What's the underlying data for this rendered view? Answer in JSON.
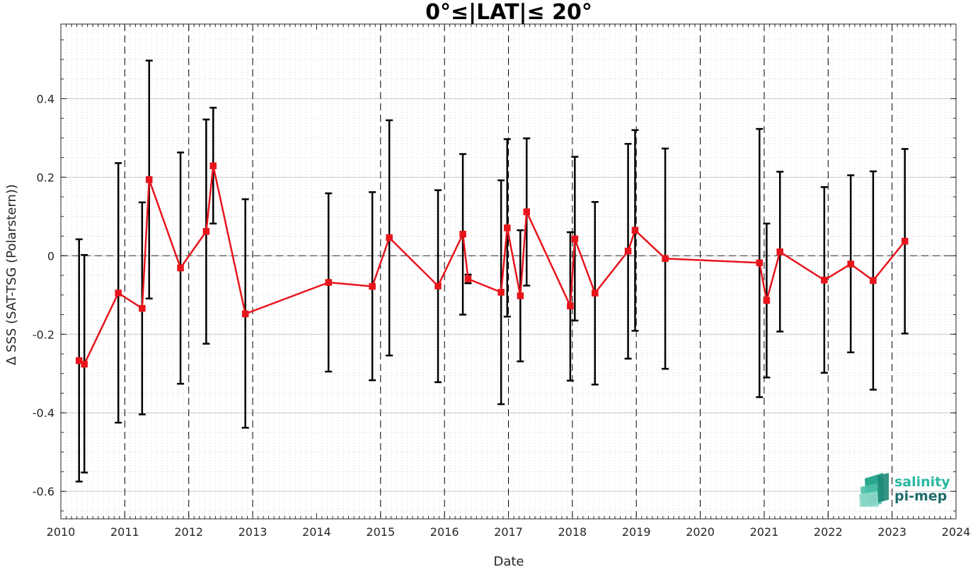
{
  "chart_data": {
    "type": "line",
    "title": "0°≤|LAT|≤ 20°",
    "xlabel": "Date",
    "ylabel": "Δ SSS (SAT-TSG (Polarstern))",
    "xlim": [
      "2010-01-01",
      "2024-01-01"
    ],
    "ylim": [
      -0.67,
      0.59
    ],
    "x_ticks": [
      "2010",
      "2011",
      "2012",
      "2013",
      "2014",
      "2015",
      "2016",
      "2017",
      "2018",
      "2019",
      "2020",
      "2021",
      "2022",
      "2023",
      "2024"
    ],
    "y_ticks": [
      -0.6,
      -0.4,
      -0.2,
      0,
      0.2,
      0.4
    ],
    "y_tick_labels": [
      "-0.6",
      "-0.4",
      "-0.2",
      "0",
      "0.2",
      "0.4"
    ],
    "grid": true,
    "zero_line": true,
    "year_lines": [
      "2011",
      "2012",
      "2013",
      "2015",
      "2016",
      "2017",
      "2018",
      "2019",
      "2020",
      "2021",
      "2022",
      "2023"
    ],
    "series": [
      {
        "color": "#e8141b",
        "points": [
          {
            "date": "2010-04-15",
            "y": -0.267,
            "err_low": -0.575,
            "err_high": 0.042
          },
          {
            "date": "2010-05-15",
            "y": -0.276,
            "err_low": -0.552,
            "err_high": 0.002
          },
          {
            "date": "2010-11-25",
            "y": -0.095,
            "err_low": -0.425,
            "err_high": 0.236
          },
          {
            "date": "2011-04-10",
            "y": -0.134,
            "err_low": -0.404,
            "err_high": 0.136
          },
          {
            "date": "2011-05-20",
            "y": 0.194,
            "err_low": -0.109,
            "err_high": 0.497
          },
          {
            "date": "2011-11-15",
            "y": -0.031,
            "err_low": -0.326,
            "err_high": 0.263
          },
          {
            "date": "2012-04-10",
            "y": 0.062,
            "err_low": -0.224,
            "err_high": 0.347
          },
          {
            "date": "2012-05-20",
            "y": 0.229,
            "err_low": 0.082,
            "err_high": 0.377
          },
          {
            "date": "2012-11-20",
            "y": -0.148,
            "err_low": -0.438,
            "err_high": 0.144
          },
          {
            "date": "2014-03-10",
            "y": -0.068,
            "err_low": -0.295,
            "err_high": 0.159
          },
          {
            "date": "2014-11-15",
            "y": -0.078,
            "err_low": -0.317,
            "err_high": 0.162
          },
          {
            "date": "2015-02-20",
            "y": 0.046,
            "err_low": -0.254,
            "err_high": 0.345
          },
          {
            "date": "2015-11-25",
            "y": -0.077,
            "err_low": -0.322,
            "err_high": 0.167
          },
          {
            "date": "2016-04-15",
            "y": 0.055,
            "err_low": -0.15,
            "err_high": 0.259
          },
          {
            "date": "2016-05-15",
            "y": -0.059,
            "err_low": -0.07,
            "err_high": -0.048
          },
          {
            "date": "2016-11-20",
            "y": -0.093,
            "err_low": -0.378,
            "err_high": 0.192
          },
          {
            "date": "2016-12-25",
            "y": 0.071,
            "err_low": -0.155,
            "err_high": 0.297
          },
          {
            "date": "2017-03-10",
            "y": -0.102,
            "err_low": -0.269,
            "err_high": 0.065
          },
          {
            "date": "2017-04-15",
            "y": 0.112,
            "err_low": -0.076,
            "err_high": 0.299
          },
          {
            "date": "2017-12-20",
            "y": -0.128,
            "err_low": -0.318,
            "err_high": 0.06
          },
          {
            "date": "2018-01-15",
            "y": 0.043,
            "err_low": -0.165,
            "err_high": 0.252
          },
          {
            "date": "2018-05-10",
            "y": -0.095,
            "err_low": -0.328,
            "err_high": 0.137
          },
          {
            "date": "2018-11-15",
            "y": 0.012,
            "err_low": -0.262,
            "err_high": 0.285
          },
          {
            "date": "2018-12-25",
            "y": 0.065,
            "err_low": -0.191,
            "err_high": 0.32
          },
          {
            "date": "2019-06-15",
            "y": -0.007,
            "err_low": -0.288,
            "err_high": 0.273
          },
          {
            "date": "2020-12-05",
            "y": -0.018,
            "err_low": -0.36,
            "err_high": 0.323
          },
          {
            "date": "2021-01-15",
            "y": -0.114,
            "err_low": -0.31,
            "err_high": 0.082
          },
          {
            "date": "2021-04-01",
            "y": 0.01,
            "err_low": -0.193,
            "err_high": 0.214
          },
          {
            "date": "2021-12-10",
            "y": -0.062,
            "err_low": -0.298,
            "err_high": 0.175
          },
          {
            "date": "2022-05-10",
            "y": -0.021,
            "err_low": -0.246,
            "err_high": 0.205
          },
          {
            "date": "2022-09-15",
            "y": -0.063,
            "err_low": -0.341,
            "err_high": 0.215
          },
          {
            "date": "2023-03-15",
            "y": 0.037,
            "err_low": -0.198,
            "err_high": 0.272
          }
        ]
      }
    ]
  },
  "logo": {
    "line1": "salinity",
    "line2": "pi-mep",
    "color1": "#2ab7a0",
    "color2": "#1f6b6b"
  },
  "colors": {
    "line": "#e8141b",
    "errorbar": "#000000",
    "axis": "#262626",
    "grid": "#bfbfbf"
  }
}
